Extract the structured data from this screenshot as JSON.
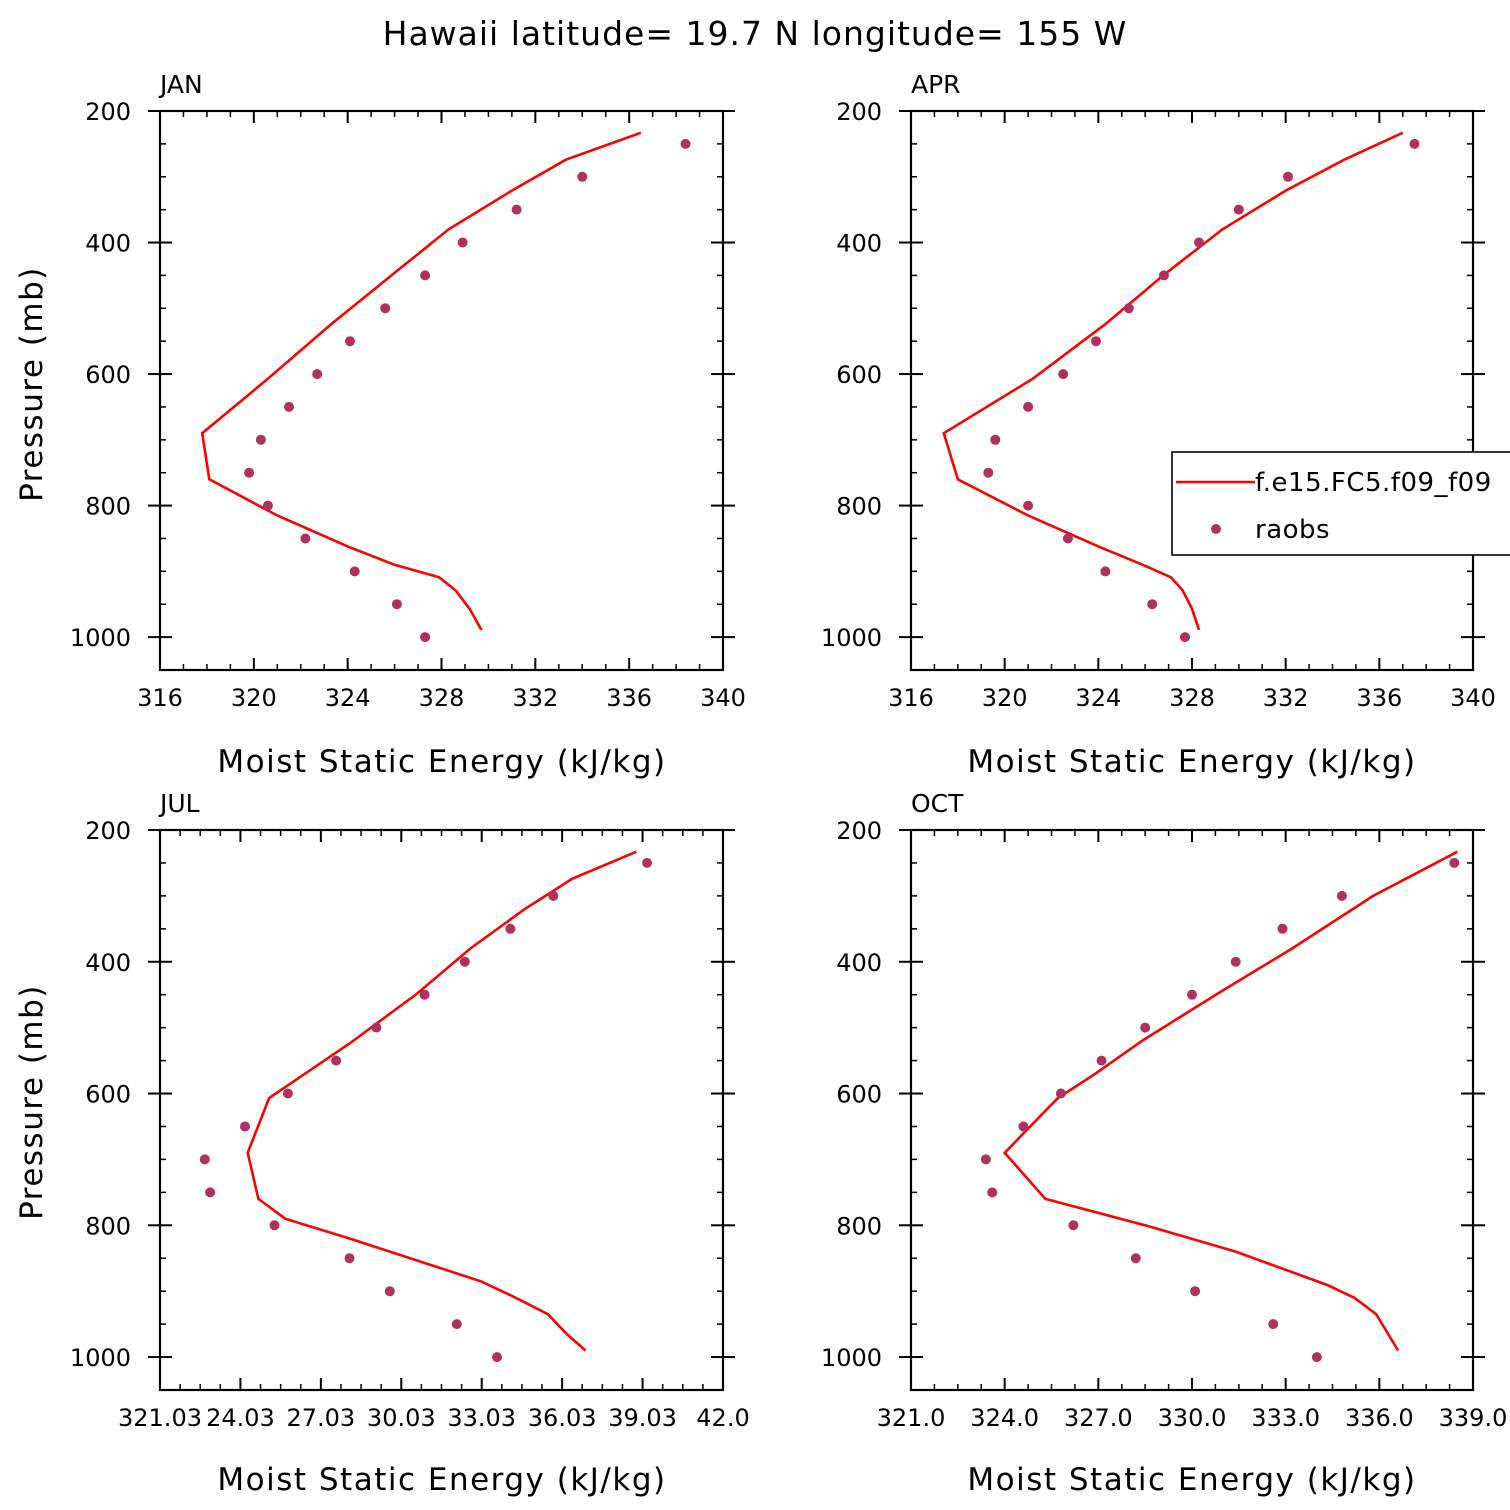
{
  "title": "Hawaii  latitude= 19.7 N longitude= 155 W",
  "colors": {
    "model": "#ff0000",
    "obs": "#b03060",
    "axis": "#000000"
  },
  "legend": {
    "model_label": "f.e15.FC5.f09_f09",
    "obs_label": "raobs"
  },
  "panels": [
    {
      "label": "JAN",
      "xlabel": "Moist Static Energy (kJ/kg)",
      "ylabel": "Pressure (mb)",
      "xlim": [
        316,
        340
      ],
      "ylim": [
        200,
        1000
      ],
      "xticks": [
        "316",
        "320",
        "324",
        "328",
        "332",
        "336",
        "340"
      ],
      "yticks": [
        "200",
        "400",
        "600",
        "800",
        "1000"
      ]
    },
    {
      "label": "APR",
      "xlabel": "Moist Static Energy (kJ/kg)",
      "ylabel": "",
      "xlim": [
        316,
        340
      ],
      "ylim": [
        200,
        1000
      ],
      "xticks": [
        "316",
        "320",
        "324",
        "328",
        "332",
        "336",
        "340"
      ],
      "yticks": [
        "200",
        "400",
        "600",
        "800",
        "1000"
      ]
    },
    {
      "label": "JUL",
      "xlabel": "Moist Static Energy (kJ/kg)",
      "ylabel": "Pressure (mb)",
      "xlim": [
        321.03,
        342.03
      ],
      "ylim": [
        200,
        1000
      ],
      "xticks": [
        "321.03",
        "24.03",
        "27.03",
        "30.03",
        "33.03",
        "36.03",
        "39.03",
        "42.0"
      ],
      "yticks": [
        "200",
        "400",
        "600",
        "800",
        "1000"
      ]
    },
    {
      "label": "OCT",
      "xlabel": "Moist Static Energy (kJ/kg)",
      "ylabel": "",
      "xlim": [
        321.0,
        339.0
      ],
      "ylim": [
        200,
        1000
      ],
      "xticks": [
        "321.0",
        "324.0",
        "327.0",
        "330.0",
        "333.0",
        "336.0",
        "339.0"
      ],
      "yticks": [
        "200",
        "400",
        "600",
        "800",
        "1000"
      ]
    }
  ],
  "chart_data": [
    {
      "type": "line",
      "label": "JAN",
      "xlim": [
        316,
        340
      ],
      "ylim": [
        1000,
        200
      ],
      "xtick_step": 4,
      "ytick_step": 100,
      "series": [
        {
          "name": "f.e15.FC5.f09_f09",
          "kind": "line",
          "x": [
            336.5,
            333.3,
            331.0,
            328.3,
            325.9,
            323.3,
            320.6,
            317.8,
            318.1,
            321.0,
            324.0,
            326.0,
            327.9,
            328.6,
            329.2,
            329.7
          ],
          "y": [
            233,
            274,
            321,
            380,
            449,
            524,
            607,
            690,
            760,
            815,
            862,
            890,
            909,
            929,
            957,
            989
          ]
        },
        {
          "name": "raobs",
          "kind": "scatter",
          "x": [
            338.4,
            334.0,
            331.2,
            328.9,
            327.3,
            325.6,
            324.1,
            322.7,
            321.5,
            320.3,
            319.8,
            320.6,
            322.2,
            324.3,
            326.1,
            327.3
          ],
          "y": [
            250,
            300,
            350,
            400,
            450,
            500,
            550,
            600,
            650,
            700,
            750,
            800,
            850,
            900,
            950,
            1000
          ]
        }
      ]
    },
    {
      "type": "line",
      "label": "APR",
      "xlim": [
        316,
        340
      ],
      "ylim": [
        1000,
        200
      ],
      "xtick_step": 4,
      "ytick_step": 100,
      "series": [
        {
          "name": "f.e15.FC5.f09_f09",
          "kind": "line",
          "x": [
            337.0,
            334.5,
            332.0,
            329.3,
            326.8,
            324.3,
            321.2,
            317.4,
            318.0,
            321.0,
            324.0,
            325.9,
            327.1,
            327.6,
            328.0,
            328.3
          ],
          "y": [
            233,
            274,
            321,
            380,
            449,
            524,
            607,
            690,
            760,
            815,
            862,
            890,
            909,
            929,
            957,
            989
          ]
        },
        {
          "name": "raobs",
          "kind": "scatter",
          "x": [
            337.5,
            332.1,
            330.0,
            328.3,
            326.8,
            325.3,
            323.9,
            322.5,
            321.0,
            319.6,
            319.3,
            321.0,
            322.7,
            324.3,
            326.3,
            327.7
          ],
          "y": [
            250,
            300,
            350,
            400,
            450,
            500,
            550,
            600,
            650,
            700,
            750,
            800,
            850,
            900,
            950,
            1000
          ]
        }
      ]
    },
    {
      "type": "line",
      "label": "JUL",
      "xlim": [
        321.03,
        342.03
      ],
      "ylim": [
        1000,
        200
      ],
      "xtick_step": 3,
      "ytick_step": 100,
      "series": [
        {
          "name": "f.e15.FC5.f09_f09",
          "kind": "line",
          "x": [
            338.8,
            336.4,
            334.6,
            332.6,
            330.6,
            328.1,
            325.1,
            324.3,
            324.7,
            325.7,
            328.1,
            333.0,
            334.3,
            335.5,
            336.2,
            336.9
          ],
          "y": [
            233,
            274,
            321,
            380,
            449,
            524,
            607,
            690,
            760,
            790,
            820,
            885,
            910,
            935,
            965,
            990
          ]
        },
        {
          "name": "raobs",
          "kind": "scatter",
          "x": [
            339.2,
            335.7,
            334.1,
            332.4,
            330.9,
            329.1,
            327.6,
            325.8,
            324.2,
            322.7,
            322.9,
            325.3,
            328.1,
            329.6,
            332.1,
            333.6
          ],
          "y": [
            250,
            300,
            350,
            400,
            450,
            500,
            550,
            600,
            650,
            700,
            750,
            800,
            850,
            900,
            950,
            1000
          ]
        }
      ]
    },
    {
      "type": "line",
      "label": "OCT",
      "xlim": [
        321.0,
        339.0
      ],
      "ylim": [
        1000,
        200
      ],
      "xtick_step": 3,
      "ytick_step": 100,
      "series": [
        {
          "name": "f.e15.FC5.f09_f09",
          "kind": "line",
          "x": [
            338.5,
            335.8,
            333.2,
            330.8,
            328.4,
            326.9,
            325.7,
            324.0,
            325.3,
            328.5,
            331.4,
            334.3,
            335.2,
            335.9,
            336.6
          ],
          "y": [
            233,
            300,
            380,
            449,
            520,
            570,
            607,
            690,
            760,
            800,
            840,
            890,
            910,
            935,
            990
          ]
        },
        {
          "name": "raobs",
          "kind": "scatter",
          "x": [
            338.4,
            334.8,
            332.9,
            331.4,
            330.0,
            328.5,
            327.1,
            325.8,
            324.6,
            323.4,
            323.6,
            326.2,
            328.2,
            330.1,
            332.6,
            334.0
          ],
          "y": [
            250,
            300,
            350,
            400,
            450,
            500,
            550,
            600,
            650,
            700,
            750,
            800,
            850,
            900,
            950,
            1000
          ]
        }
      ]
    }
  ]
}
